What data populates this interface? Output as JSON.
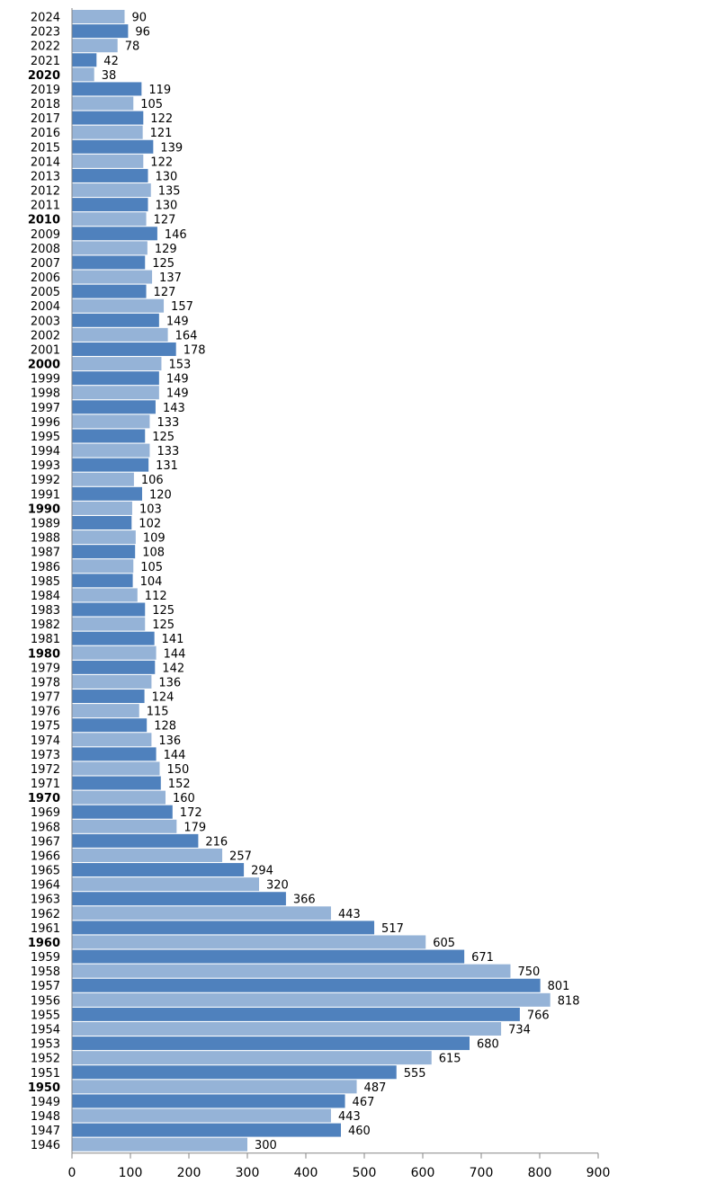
{
  "chart_data": {
    "type": "bar",
    "orientation": "horizontal",
    "title": "",
    "xlabel": "",
    "ylabel": "",
    "xlim": [
      0,
      900
    ],
    "x_ticks": [
      0,
      100,
      200,
      300,
      400,
      500,
      600,
      700,
      800,
      900
    ],
    "grid": false,
    "legend": "none",
    "colors": {
      "dark": "#4f81bd",
      "light": "#95b3d7"
    },
    "highlighted_categories": [
      "2020",
      "2010",
      "2000",
      "1990",
      "1980",
      "1970",
      "1960",
      "1950"
    ],
    "categories": [
      "2024",
      "2023",
      "2022",
      "2021",
      "2020",
      "2019",
      "2018",
      "2017",
      "2016",
      "2015",
      "2014",
      "2013",
      "2012",
      "2011",
      "2010",
      "2009",
      "2008",
      "2007",
      "2006",
      "2005",
      "2004",
      "2003",
      "2002",
      "2001",
      "2000",
      "1999",
      "1998",
      "1997",
      "1996",
      "1995",
      "1994",
      "1993",
      "1992",
      "1991",
      "1990",
      "1989",
      "1988",
      "1987",
      "1986",
      "1985",
      "1984",
      "1983",
      "1982",
      "1981",
      "1980",
      "1979",
      "1978",
      "1977",
      "1976",
      "1975",
      "1974",
      "1973",
      "1972",
      "1971",
      "1970",
      "1969",
      "1968",
      "1967",
      "1966",
      "1965",
      "1964",
      "1963",
      "1962",
      "1961",
      "1960",
      "1959",
      "1958",
      "1957",
      "1956",
      "1955",
      "1954",
      "1953",
      "1952",
      "1951",
      "1950",
      "1949",
      "1948",
      "1947",
      "1946"
    ],
    "values": [
      90,
      96,
      78,
      42,
      38,
      119,
      105,
      122,
      121,
      139,
      122,
      130,
      135,
      130,
      127,
      146,
      129,
      125,
      137,
      127,
      157,
      149,
      164,
      178,
      153,
      149,
      149,
      143,
      133,
      125,
      133,
      131,
      106,
      120,
      103,
      102,
      109,
      108,
      105,
      104,
      112,
      125,
      125,
      141,
      144,
      142,
      136,
      124,
      115,
      128,
      136,
      144,
      150,
      152,
      160,
      172,
      179,
      216,
      257,
      294,
      320,
      366,
      443,
      517,
      605,
      671,
      750,
      801,
      818,
      766,
      734,
      680,
      615,
      555,
      487,
      467,
      443,
      460,
      300
    ]
  }
}
